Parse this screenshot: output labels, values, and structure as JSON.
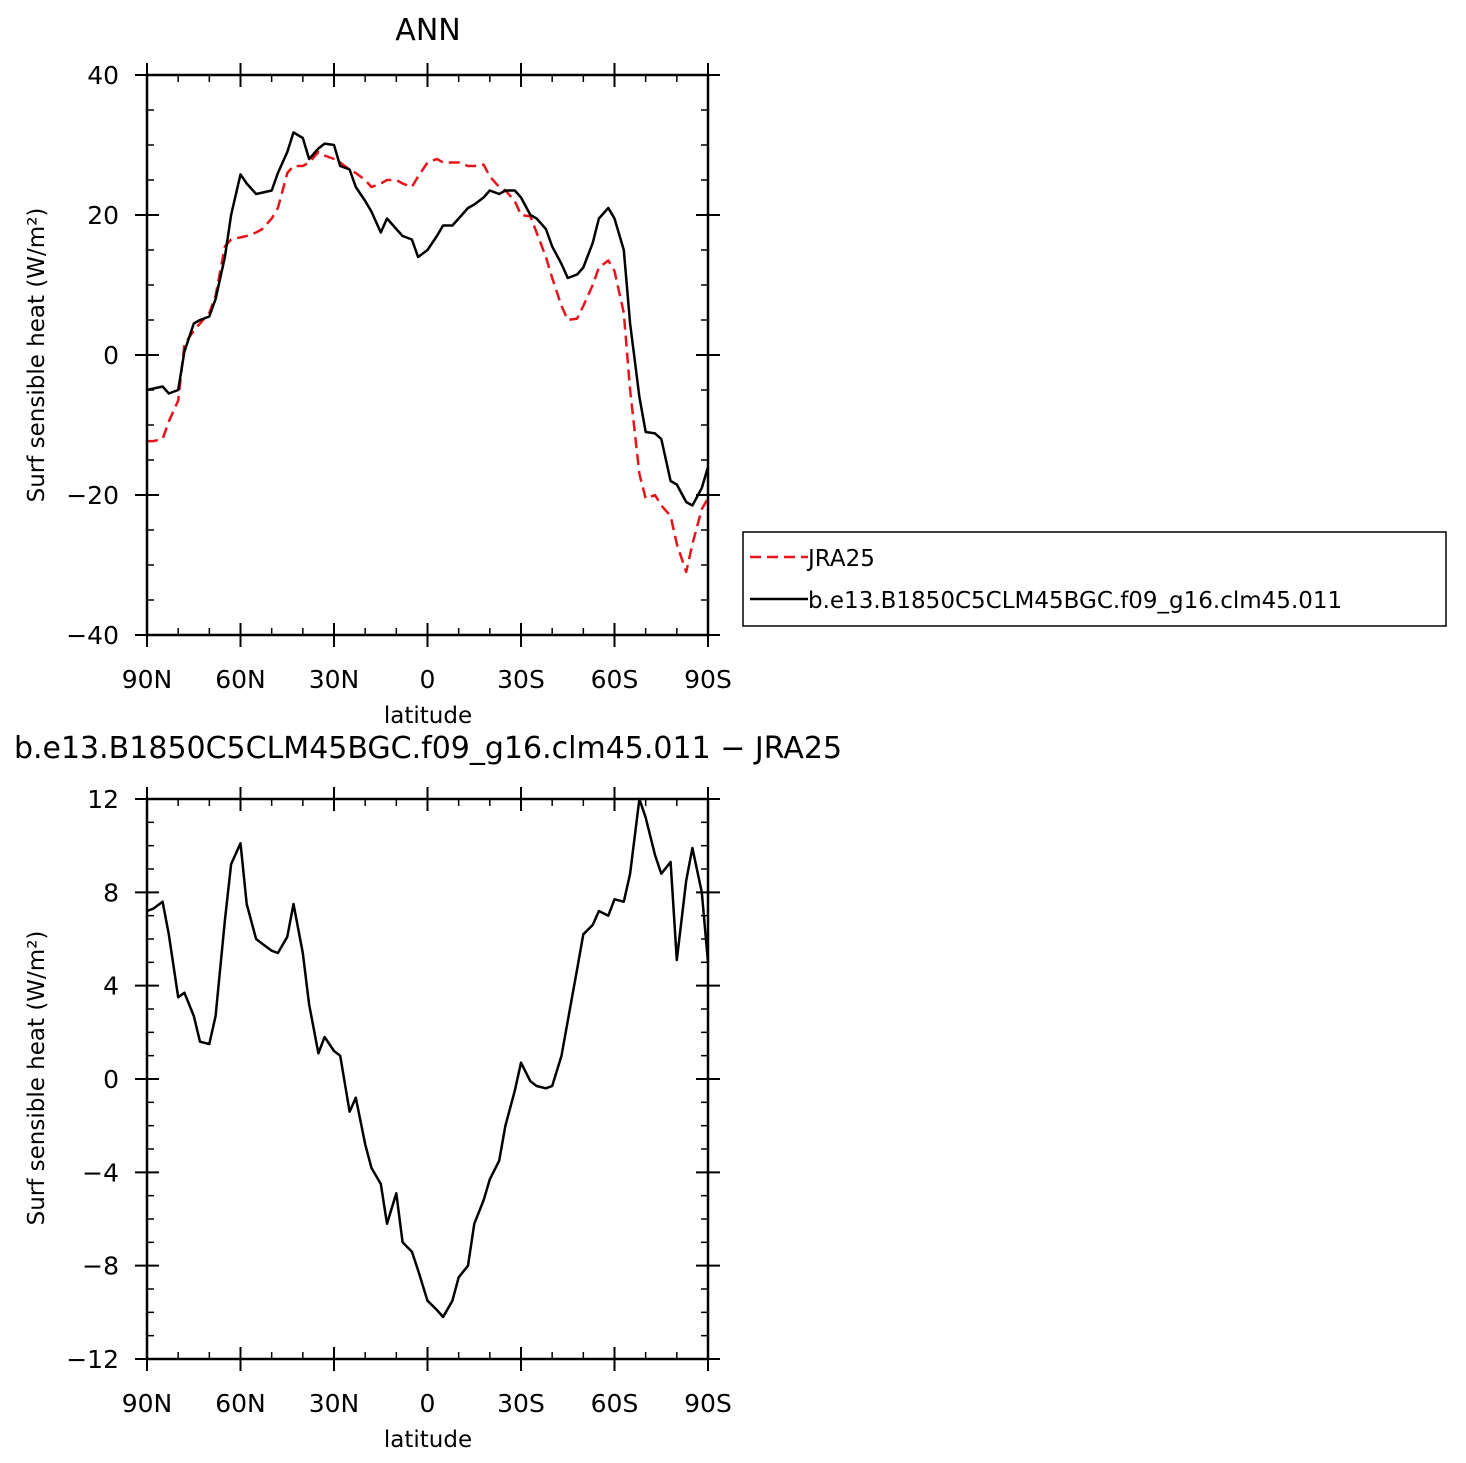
{
  "chart_data": [
    {
      "type": "line",
      "title": "ANN",
      "xlabel": "latitude",
      "ylabel": "Surf sensible heat (W/m²)",
      "xlim": [
        90,
        -90
      ],
      "ylim": [
        -40,
        40
      ],
      "x_ticks": [
        {
          "value": 90,
          "label": "90N"
        },
        {
          "value": 60,
          "label": "60N"
        },
        {
          "value": 30,
          "label": "30N"
        },
        {
          "value": 0,
          "label": "0"
        },
        {
          "value": -30,
          "label": "30S"
        },
        {
          "value": -60,
          "label": "60S"
        },
        {
          "value": -90,
          "label": "90S"
        }
      ],
      "y_ticks": [
        {
          "value": 40,
          "label": "40"
        },
        {
          "value": 20,
          "label": "20"
        },
        {
          "value": 0,
          "label": "0"
        },
        {
          "value": -20,
          "label": "−20"
        },
        {
          "value": -40,
          "label": "−40"
        }
      ],
      "legend": {
        "placement": "right"
      },
      "series": [
        {
          "name": "JRA25",
          "color": "#e8141c",
          "style": "dashed",
          "x": [
            90,
            88,
            85,
            83,
            80,
            78,
            75,
            73,
            70,
            68,
            65,
            63,
            60,
            58,
            55,
            53,
            50,
            48,
            45,
            43,
            40,
            38,
            35,
            33,
            30,
            28,
            25,
            23,
            20,
            18,
            15,
            13,
            10,
            8,
            5,
            3,
            0,
            -3,
            -5,
            -8,
            -10,
            -13,
            -15,
            -18,
            -20,
            -23,
            -25,
            -28,
            -30,
            -33,
            -35,
            -38,
            -40,
            -43,
            -45,
            -48,
            -50,
            -53,
            -55,
            -58,
            -60,
            -63,
            -65,
            -68,
            -70,
            -73,
            -75,
            -78,
            -80,
            -83,
            -85,
            -88,
            -90
          ],
          "y": [
            -12.3,
            -12.3,
            -12.0,
            -9.5,
            -6.5,
            1.5,
            3.5,
            4.5,
            6.0,
            8.5,
            15.5,
            16.5,
            16.8,
            17.0,
            17.5,
            18.0,
            19.5,
            21.0,
            26.0,
            27.0,
            27.0,
            27.5,
            29.0,
            28.5,
            28.0,
            27.5,
            26.5,
            26.0,
            25.0,
            24.0,
            24.5,
            25.0,
            25.0,
            24.5,
            24.0,
            25.5,
            27.5,
            28.0,
            27.5,
            27.5,
            27.5,
            27.0,
            27.0,
            27.2,
            25.5,
            24.0,
            23.5,
            22.0,
            20.0,
            19.8,
            17.5,
            14.0,
            11.0,
            7.0,
            5.0,
            5.2,
            7.0,
            10.0,
            12.5,
            13.5,
            12.0,
            6.0,
            -5.0,
            -17.0,
            -20.5,
            -20.0,
            -21.5,
            -23.0,
            -27.0,
            -31.0,
            -27.0,
            -22.0,
            -20.5
          ]
        },
        {
          "name": "b.e13.B1850C5CLM45BGC.f09_g16.clm45.011",
          "color": "#000000",
          "style": "solid",
          "x": [
            90,
            88,
            85,
            83,
            80,
            78,
            75,
            73,
            70,
            68,
            65,
            63,
            60,
            58,
            55,
            53,
            50,
            48,
            45,
            43,
            40,
            38,
            35,
            33,
            30,
            28,
            25,
            23,
            20,
            18,
            15,
            13,
            10,
            8,
            5,
            3,
            0,
            -3,
            -5,
            -8,
            -10,
            -13,
            -15,
            -18,
            -20,
            -23,
            -25,
            -28,
            -30,
            -33,
            -35,
            -38,
            -40,
            -43,
            -45,
            -48,
            -50,
            -53,
            -55,
            -58,
            -60,
            -63,
            -65,
            -68,
            -70,
            -73,
            -75,
            -78,
            -80,
            -83,
            -85,
            -88,
            -90
          ],
          "y": [
            -5.0,
            -4.8,
            -4.5,
            -5.5,
            -5.0,
            0.5,
            4.5,
            5.0,
            5.5,
            8.0,
            14.0,
            20.0,
            25.8,
            24.5,
            23.0,
            23.2,
            23.5,
            26.0,
            29.0,
            31.8,
            31.0,
            28.0,
            29.5,
            30.2,
            30.0,
            27.0,
            26.5,
            24.0,
            22.0,
            20.5,
            17.5,
            19.5,
            18.0,
            17.0,
            16.5,
            14.0,
            15.0,
            17.0,
            18.5,
            18.5,
            19.5,
            21.0,
            21.5,
            22.5,
            23.5,
            23.0,
            23.5,
            23.5,
            22.5,
            20.0,
            19.5,
            18.0,
            15.5,
            13.0,
            11.0,
            11.5,
            12.5,
            16.0,
            19.5,
            21.0,
            19.5,
            15.0,
            4.5,
            -6.0,
            -11.0,
            -11.2,
            -12.0,
            -18.0,
            -18.5,
            -21.0,
            -21.5,
            -19.0,
            -16.0
          ]
        }
      ]
    },
    {
      "type": "line",
      "title": "b.e13.B1850C5CLM45BGC.f09_g16.clm45.011 − JRA25",
      "xlabel": "latitude",
      "ylabel": "Surf sensible heat (W/m²)",
      "xlim": [
        90,
        -90
      ],
      "ylim": [
        -12,
        12
      ],
      "x_ticks": [
        {
          "value": 90,
          "label": "90N"
        },
        {
          "value": 60,
          "label": "60N"
        },
        {
          "value": 30,
          "label": "30N"
        },
        {
          "value": 0,
          "label": "0"
        },
        {
          "value": -30,
          "label": "30S"
        },
        {
          "value": -60,
          "label": "60S"
        },
        {
          "value": -90,
          "label": "90S"
        }
      ],
      "y_ticks": [
        {
          "value": 12,
          "label": "12"
        },
        {
          "value": 8,
          "label": "8"
        },
        {
          "value": 4,
          "label": "4"
        },
        {
          "value": 0,
          "label": "0"
        },
        {
          "value": -4,
          "label": "−4"
        },
        {
          "value": -8,
          "label": "−8"
        },
        {
          "value": -12,
          "label": "−12"
        }
      ],
      "series": [
        {
          "color": "#000000",
          "style": "solid",
          "x": [
            90,
            88,
            85,
            83,
            80,
            78,
            75,
            73,
            70,
            68,
            65,
            63,
            60,
            58,
            55,
            53,
            50,
            48,
            45,
            43,
            40,
            38,
            35,
            33,
            30,
            28,
            25,
            23,
            20,
            18,
            15,
            13,
            10,
            8,
            5,
            3,
            0,
            -3,
            -5,
            -8,
            -10,
            -13,
            -15,
            -18,
            -20,
            -23,
            -25,
            -28,
            -30,
            -33,
            -35,
            -38,
            -40,
            -43,
            -45,
            -48,
            -50,
            -53,
            -55,
            -58,
            -60,
            -63,
            -65,
            -68,
            -70,
            -73,
            -75,
            -78,
            -80,
            -83,
            -85,
            -88,
            -90
          ],
          "y": [
            7.2,
            7.3,
            7.6,
            6.2,
            3.5,
            3.7,
            2.7,
            1.6,
            1.5,
            2.7,
            6.8,
            9.2,
            10.1,
            7.5,
            6.0,
            5.8,
            5.5,
            5.4,
            6.1,
            7.5,
            5.4,
            3.2,
            1.1,
            1.8,
            1.2,
            1.0,
            -1.4,
            -0.8,
            -2.8,
            -3.8,
            -4.5,
            -6.2,
            -4.9,
            -7.0,
            -7.4,
            -8.2,
            -9.5,
            -9.9,
            -10.2,
            -9.5,
            -8.5,
            -8.0,
            -6.2,
            -5.2,
            -4.3,
            -3.5,
            -2.0,
            -0.5,
            0.7,
            -0.1,
            -0.3,
            -0.4,
            -0.3,
            1.0,
            2.5,
            4.7,
            6.2,
            6.6,
            7.2,
            7.0,
            7.7,
            7.6,
            8.8,
            12.0,
            11.2,
            9.6,
            8.8,
            9.3,
            5.1,
            8.5,
            9.9,
            8.0,
            5.0
          ]
        }
      ]
    }
  ]
}
